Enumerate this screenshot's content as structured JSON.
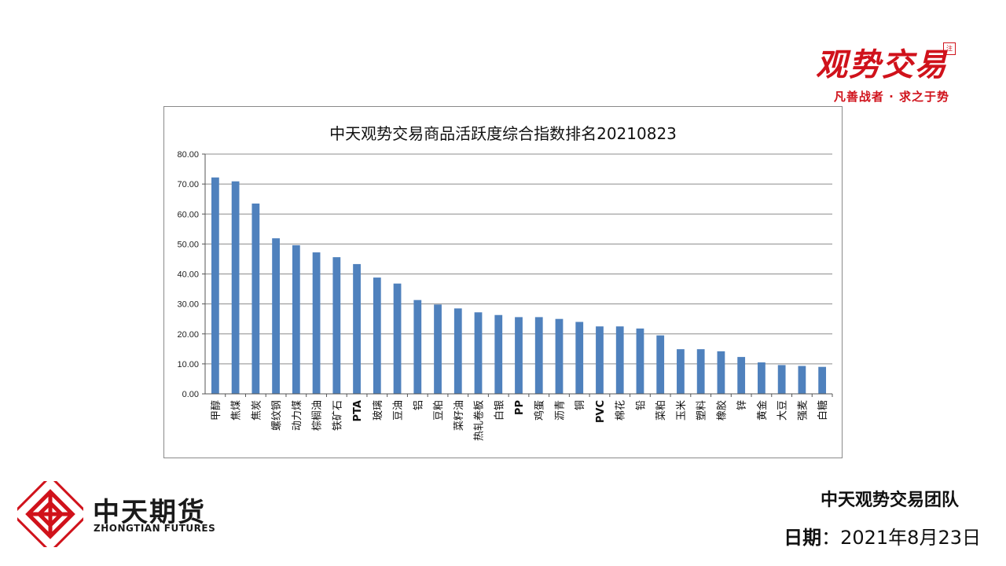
{
  "brand": {
    "name": "观势交易",
    "stamp": "注",
    "slogan": "凡善战者 · 求之于势"
  },
  "company": {
    "name_cn": "中天期货",
    "name_en": "ZHONGTIAN FUTURES"
  },
  "footer": {
    "team": "中天观势交易团队",
    "date_label": "日期",
    "date_sep": "：",
    "date_value": "2021年8月23日"
  },
  "colors": {
    "bar": "#4f81bd",
    "brand_red": "#d0121b",
    "gridline": "#8c8c8c"
  },
  "chart_data": {
    "type": "bar",
    "title": "中天观势交易商品活跃度综合指数排名20210823",
    "xlabel": "",
    "ylabel": "",
    "ylim": [
      0,
      80
    ],
    "yticks": [
      "0.00",
      "10.00",
      "20.00",
      "30.00",
      "40.00",
      "50.00",
      "60.00",
      "70.00",
      "80.00"
    ],
    "grid": true,
    "categories": [
      "甲醇",
      "焦煤",
      "焦炭",
      "螺纹钢",
      "动力煤",
      "棕榈油",
      "铁矿石",
      "PTA",
      "玻璃",
      "豆油",
      "铝",
      "豆粕",
      "菜籽油",
      "热轧卷板",
      "白银",
      "PP",
      "鸡蛋",
      "沥青",
      "铜",
      "PVC",
      "棉花",
      "铅",
      "菜粕",
      "玉米",
      "塑料",
      "橡胶",
      "锌",
      "黄金",
      "大豆",
      "强麦",
      "白糖"
    ],
    "values": [
      72.2,
      70.9,
      63.5,
      51.9,
      49.6,
      47.2,
      45.6,
      43.3,
      38.8,
      36.8,
      31.3,
      29.8,
      28.5,
      27.2,
      26.3,
      25.6,
      25.6,
      25.0,
      24.0,
      22.5,
      22.5,
      21.8,
      19.5,
      14.9,
      14.9,
      14.2,
      12.3,
      10.5,
      9.6,
      9.3,
      9.0
    ]
  }
}
